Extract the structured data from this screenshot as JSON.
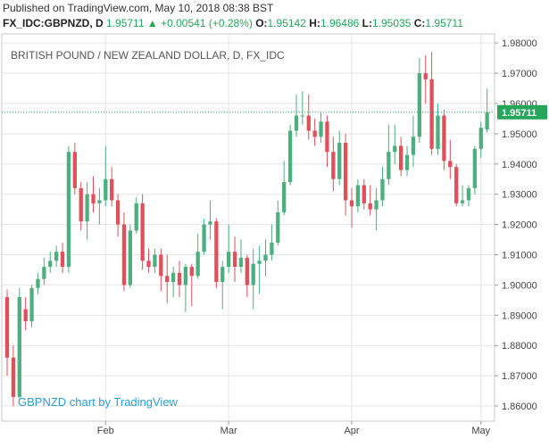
{
  "header": {
    "published": "Published on TradingView.com, May 10, 2018 08:38 BST",
    "symbol": "FX_IDC:GBPNZD, D",
    "last": "1.95711",
    "change_arrow": "▲",
    "change": "+0.00541 (+0.28%)",
    "o_label": "O:",
    "o_value": "1.95142",
    "h_label": "H:",
    "h_value": "1.96486",
    "l_label": "L:",
    "l_value": "1.95035",
    "c_label": "C:",
    "c_value": "1.95711"
  },
  "chart_data": {
    "type": "candlestick",
    "title": "BRITISH POUND / NEW ZEALAND DOLLAR, D, FX_IDC",
    "watermark": "GBPNZD chart by TradingView",
    "ylim": [
      1.855,
      1.983
    ],
    "y_ticks": [
      "1.86000",
      "1.87000",
      "1.88000",
      "1.89000",
      "1.90000",
      "1.91000",
      "1.92000",
      "1.93000",
      "1.94000",
      "1.95000",
      "1.96000",
      "1.97000",
      "1.98000"
    ],
    "x_labels": [
      {
        "label": "Feb",
        "index": 16
      },
      {
        "label": "Mar",
        "index": 36
      },
      {
        "label": "Apr",
        "index": 56
      },
      {
        "label": "May",
        "index": 77
      }
    ],
    "last_price_label": "1.95711",
    "colors": {
      "up": "#4caf7d",
      "down": "#e0505a",
      "grid": "#e6e6e6",
      "price_line": "#26a65b"
    },
    "candles": [
      {
        "o": 1.896,
        "h": 1.8985,
        "l": 1.87,
        "c": 1.876
      },
      {
        "o": 1.876,
        "h": 1.88,
        "l": 1.86,
        "c": 1.863
      },
      {
        "o": 1.863,
        "h": 1.899,
        "l": 1.862,
        "c": 1.896
      },
      {
        "o": 1.892,
        "h": 1.896,
        "l": 1.885,
        "c": 1.888
      },
      {
        "o": 1.888,
        "h": 1.9,
        "l": 1.886,
        "c": 1.899
      },
      {
        "o": 1.899,
        "h": 1.904,
        "l": 1.897,
        "c": 1.902
      },
      {
        "o": 1.902,
        "h": 1.909,
        "l": 1.9,
        "c": 1.906
      },
      {
        "o": 1.906,
        "h": 1.911,
        "l": 1.904,
        "c": 1.908
      },
      {
        "o": 1.908,
        "h": 1.913,
        "l": 1.906,
        "c": 1.911
      },
      {
        "o": 1.911,
        "h": 1.914,
        "l": 1.904,
        "c": 1.906
      },
      {
        "o": 1.906,
        "h": 1.946,
        "l": 1.904,
        "c": 1.944
      },
      {
        "o": 1.944,
        "h": 1.947,
        "l": 1.93,
        "c": 1.932
      },
      {
        "o": 1.932,
        "h": 1.934,
        "l": 1.918,
        "c": 1.921
      },
      {
        "o": 1.921,
        "h": 1.934,
        "l": 1.915,
        "c": 1.93
      },
      {
        "o": 1.93,
        "h": 1.936,
        "l": 1.924,
        "c": 1.927
      },
      {
        "o": 1.927,
        "h": 1.932,
        "l": 1.92,
        "c": 1.928
      },
      {
        "o": 1.928,
        "h": 1.946,
        "l": 1.926,
        "c": 1.935
      },
      {
        "o": 1.935,
        "h": 1.939,
        "l": 1.926,
        "c": 1.928
      },
      {
        "o": 1.928,
        "h": 1.93,
        "l": 1.916,
        "c": 1.92
      },
      {
        "o": 1.92,
        "h": 1.924,
        "l": 1.898,
        "c": 1.9
      },
      {
        "o": 1.9,
        "h": 1.92,
        "l": 1.899,
        "c": 1.918
      },
      {
        "o": 1.918,
        "h": 1.929,
        "l": 1.917,
        "c": 1.927
      },
      {
        "o": 1.927,
        "h": 1.93,
        "l": 1.905,
        "c": 1.908
      },
      {
        "o": 1.908,
        "h": 1.912,
        "l": 1.904,
        "c": 1.906
      },
      {
        "o": 1.906,
        "h": 1.912,
        "l": 1.904,
        "c": 1.91
      },
      {
        "o": 1.91,
        "h": 1.912,
        "l": 1.898,
        "c": 1.903
      },
      {
        "o": 1.903,
        "h": 1.91,
        "l": 1.894,
        "c": 1.901
      },
      {
        "o": 1.901,
        "h": 1.906,
        "l": 1.896,
        "c": 1.904
      },
      {
        "o": 1.904,
        "h": 1.908,
        "l": 1.896,
        "c": 1.9
      },
      {
        "o": 1.9,
        "h": 1.907,
        "l": 1.891,
        "c": 1.906
      },
      {
        "o": 1.906,
        "h": 1.907,
        "l": 1.893,
        "c": 1.903
      },
      {
        "o": 1.903,
        "h": 1.917,
        "l": 1.902,
        "c": 1.911
      },
      {
        "o": 1.911,
        "h": 1.922,
        "l": 1.91,
        "c": 1.92
      },
      {
        "o": 1.92,
        "h": 1.928,
        "l": 1.915,
        "c": 1.921
      },
      {
        "o": 1.921,
        "h": 1.922,
        "l": 1.899,
        "c": 1.901
      },
      {
        "o": 1.901,
        "h": 1.908,
        "l": 1.892,
        "c": 1.906
      },
      {
        "o": 1.906,
        "h": 1.92,
        "l": 1.904,
        "c": 1.911
      },
      {
        "o": 1.911,
        "h": 1.916,
        "l": 1.901,
        "c": 1.906
      },
      {
        "o": 1.906,
        "h": 1.915,
        "l": 1.904,
        "c": 1.909
      },
      {
        "o": 1.909,
        "h": 1.91,
        "l": 1.896,
        "c": 1.9
      },
      {
        "o": 1.9,
        "h": 1.912,
        "l": 1.892,
        "c": 1.907
      },
      {
        "o": 1.907,
        "h": 1.913,
        "l": 1.897,
        "c": 1.908
      },
      {
        "o": 1.908,
        "h": 1.915,
        "l": 1.903,
        "c": 1.91
      },
      {
        "o": 1.91,
        "h": 1.92,
        "l": 1.908,
        "c": 1.914
      },
      {
        "o": 1.914,
        "h": 1.928,
        "l": 1.913,
        "c": 1.924
      },
      {
        "o": 1.924,
        "h": 1.941,
        "l": 1.923,
        "c": 1.934
      },
      {
        "o": 1.934,
        "h": 1.953,
        "l": 1.933,
        "c": 1.951
      },
      {
        "o": 1.951,
        "h": 1.963,
        "l": 1.949,
        "c": 1.956
      },
      {
        "o": 1.956,
        "h": 1.964,
        "l": 1.953,
        "c": 1.956
      },
      {
        "o": 1.956,
        "h": 1.963,
        "l": 1.948,
        "c": 1.951
      },
      {
        "o": 1.951,
        "h": 1.955,
        "l": 1.946,
        "c": 1.949
      },
      {
        "o": 1.949,
        "h": 1.957,
        "l": 1.947,
        "c": 1.954
      },
      {
        "o": 1.954,
        "h": 1.956,
        "l": 1.939,
        "c": 1.944
      },
      {
        "o": 1.944,
        "h": 1.949,
        "l": 1.931,
        "c": 1.935
      },
      {
        "o": 1.935,
        "h": 1.951,
        "l": 1.933,
        "c": 1.947
      },
      {
        "o": 1.947,
        "h": 1.95,
        "l": 1.923,
        "c": 1.928
      },
      {
        "o": 1.928,
        "h": 1.932,
        "l": 1.919,
        "c": 1.926
      },
      {
        "o": 1.926,
        "h": 1.935,
        "l": 1.924,
        "c": 1.933
      },
      {
        "o": 1.933,
        "h": 1.935,
        "l": 1.925,
        "c": 1.927
      },
      {
        "o": 1.927,
        "h": 1.933,
        "l": 1.923,
        "c": 1.925
      },
      {
        "o": 1.925,
        "h": 1.932,
        "l": 1.918,
        "c": 1.928
      },
      {
        "o": 1.928,
        "h": 1.939,
        "l": 1.926,
        "c": 1.935
      },
      {
        "o": 1.935,
        "h": 1.953,
        "l": 1.933,
        "c": 1.944
      },
      {
        "o": 1.944,
        "h": 1.953,
        "l": 1.94,
        "c": 1.946
      },
      {
        "o": 1.946,
        "h": 1.949,
        "l": 1.936,
        "c": 1.938
      },
      {
        "o": 1.938,
        "h": 1.946,
        "l": 1.936,
        "c": 1.943
      },
      {
        "o": 1.943,
        "h": 1.956,
        "l": 1.939,
        "c": 1.949
      },
      {
        "o": 1.949,
        "h": 1.975,
        "l": 1.947,
        "c": 1.97
      },
      {
        "o": 1.97,
        "h": 1.976,
        "l": 1.96,
        "c": 1.968
      },
      {
        "o": 1.968,
        "h": 1.977,
        "l": 1.943,
        "c": 1.945
      },
      {
        "o": 1.945,
        "h": 1.96,
        "l": 1.943,
        "c": 1.956
      },
      {
        "o": 1.956,
        "h": 1.958,
        "l": 1.938,
        "c": 1.941
      },
      {
        "o": 1.941,
        "h": 1.948,
        "l": 1.935,
        "c": 1.939
      },
      {
        "o": 1.939,
        "h": 1.94,
        "l": 1.926,
        "c": 1.927
      },
      {
        "o": 1.927,
        "h": 1.933,
        "l": 1.926,
        "c": 1.928
      },
      {
        "o": 1.928,
        "h": 1.933,
        "l": 1.926,
        "c": 1.932
      },
      {
        "o": 1.932,
        "h": 1.946,
        "l": 1.93,
        "c": 1.945
      },
      {
        "o": 1.945,
        "h": 1.954,
        "l": 1.942,
        "c": 1.952
      },
      {
        "o": 1.9514,
        "h": 1.9649,
        "l": 1.9504,
        "c": 1.9571
      }
    ]
  }
}
